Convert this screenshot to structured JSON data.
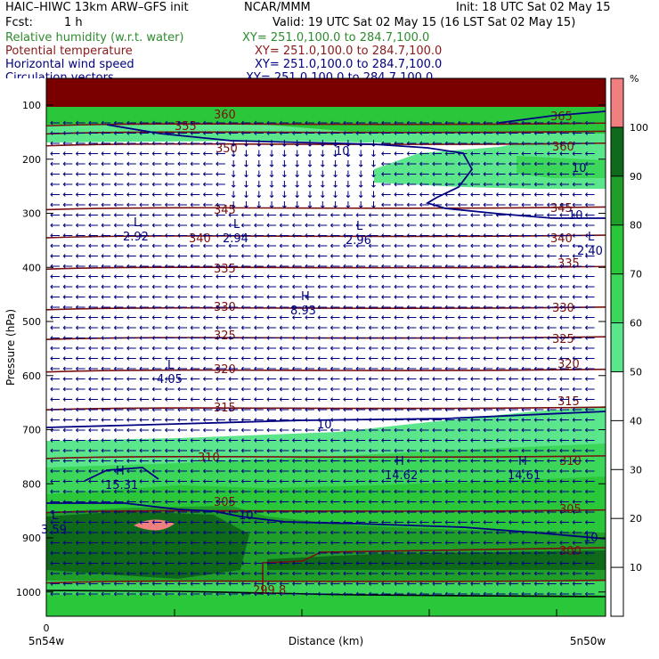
{
  "header": {
    "model": "HAIC–HIWC 13km ARW–GFS init",
    "org": "NCAR/MMM",
    "init": "Init: 18 UTC Sat 02 May 15",
    "fcst_label": "Fcst:",
    "fcst_value": "1 h",
    "valid": "Valid: 19 UTC Sat 02 May 15 (16 LST Sat 02 May 15)",
    "fields": [
      {
        "name": "Relative humidity (w.r.t. water)",
        "xy": "XY= 251.0,100.0 to 284.7,100.0",
        "color": "#2e8b2e"
      },
      {
        "name": "Potential temperature",
        "xy": "XY= 251.0,100.0 to 284.7,100.0",
        "color": "#8b1a1a"
      },
      {
        "name": "Horizontal wind speed",
        "xy": "XY= 251.0,100.0 to 284.7,100.0",
        "color": "#000080"
      },
      {
        "name": "Circulation vectors",
        "xy": "XY= 251.0,100.0 to 284.7,100.0",
        "color": "#000080"
      }
    ]
  },
  "chart_data": {
    "type": "heatmap",
    "xlabel": "Distance (km)",
    "ylabel": "Pressure (hPa)",
    "x_tick_labels": [
      "0"
    ],
    "x_end_labels": [
      "5n54w",
      "5n50w"
    ],
    "ylim": [
      1050,
      50
    ],
    "y_ticks": [
      100,
      200,
      300,
      400,
      500,
      600,
      700,
      800,
      900,
      1000
    ],
    "colorbar": {
      "unit": "%",
      "ticks": [
        10,
        20,
        30,
        40,
        50,
        60,
        70,
        80,
        90,
        100
      ],
      "bins": [
        {
          "range": [
            50,
            60
          ],
          "color": "#5ce68c"
        },
        {
          "range": [
            60,
            70
          ],
          "color": "#3cd75a"
        },
        {
          "range": [
            70,
            80
          ],
          "color": "#2bc73b"
        },
        {
          "range": [
            80,
            90
          ],
          "color": "#1f9e2a"
        },
        {
          "range": [
            90,
            100
          ],
          "color": "#0e6a1a"
        },
        {
          "range": [
            100,
            110
          ],
          "color": "#f08080"
        }
      ]
    },
    "theta_contours": [
      300,
      305,
      310,
      315,
      320,
      325,
      330,
      335,
      340,
      345,
      350,
      355,
      360,
      365
    ],
    "theta_labels": [
      "299.8"
    ],
    "wind_contours": [
      10
    ],
    "extrema": [
      {
        "type": "L",
        "value": "2.92"
      },
      {
        "type": "L",
        "value": "2.94"
      },
      {
        "type": "L",
        "value": "2.96"
      },
      {
        "type": "L",
        "value": "2.40"
      },
      {
        "type": "H",
        "value": "8.93"
      },
      {
        "type": "L",
        "value": "4.05"
      },
      {
        "type": "H",
        "value": "15.31"
      },
      {
        "type": "H",
        "value": "14.62"
      },
      {
        "type": "H",
        "value": "14.61"
      },
      {
        "type": "L",
        "value": "3.59"
      }
    ]
  }
}
